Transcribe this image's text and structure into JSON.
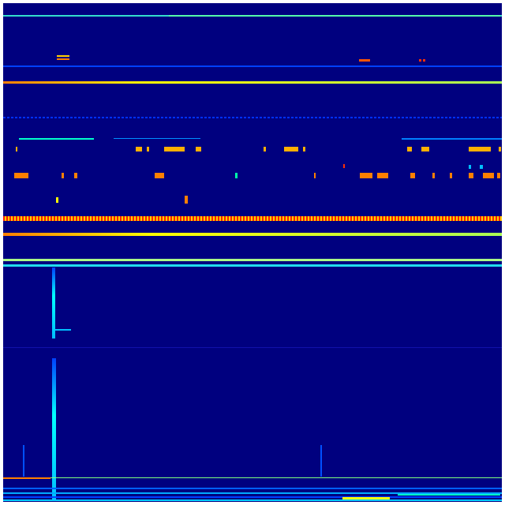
{
  "heatmap": {
    "colormap": "jet",
    "colors": {
      "background": "#00007f",
      "low": "#0000ff",
      "mid_low": "#00bfff",
      "mid": "#7fff7f",
      "mid_high": "#ffff00",
      "high": "#ff7f00",
      "peak": "#ff0000"
    }
  }
}
